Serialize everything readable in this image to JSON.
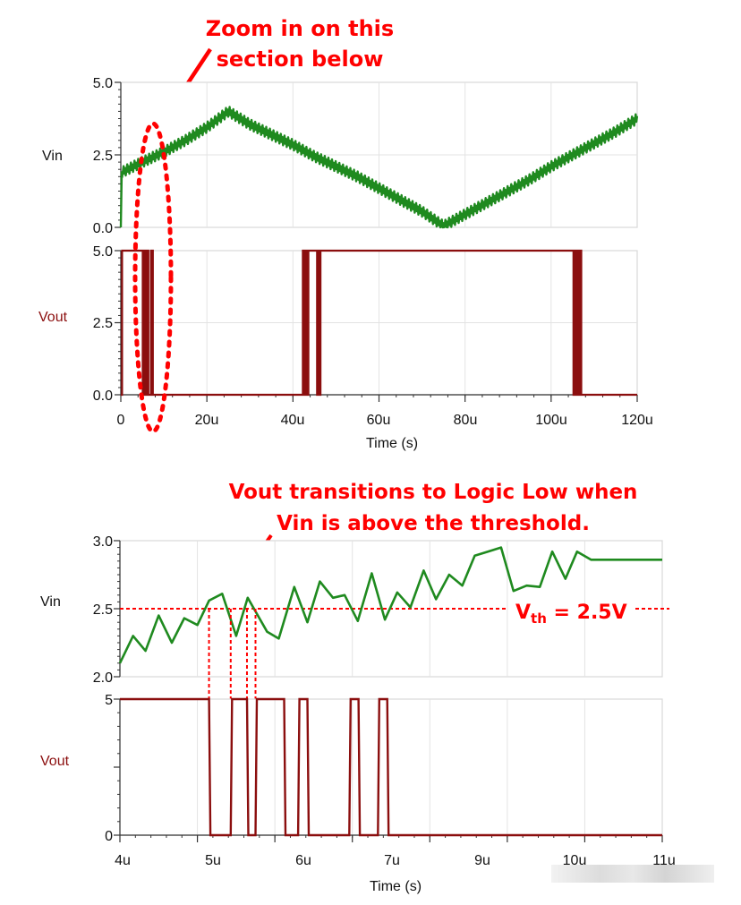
{
  "annotations": {
    "top_line1": "Zoom in on this",
    "top_line2": "section below",
    "bottom_line1": "Vout transitions to Logic Low when",
    "bottom_line2": "Vin is above the threshold.",
    "threshold_label_main": "V",
    "threshold_label_sub": "th",
    "threshold_label_rest": " = 2.5V"
  },
  "colors": {
    "vin": "#1f8a1f",
    "vout": "#8b0e0e",
    "annotation": "#ff0000",
    "grid": "#e3e3e3",
    "axis": "#333333"
  },
  "chart_data": [
    {
      "type": "line",
      "title": "Vin (overview)",
      "ylabel": "Vin",
      "xlabel": "Time (s)",
      "ylim": [
        0.0,
        5.0
      ],
      "xlim_us": [
        0,
        120
      ],
      "yticks": [
        "5.0",
        "2.5",
        "0.0"
      ],
      "grid": true,
      "x_us": [
        0,
        0.2,
        5,
        10,
        15,
        20,
        25,
        30,
        35,
        40,
        45,
        50,
        55,
        60,
        65,
        70,
        75,
        80,
        85,
        90,
        95,
        100,
        105,
        110,
        115,
        120
      ],
      "values": [
        0.0,
        1.9,
        2.25,
        2.6,
        3.0,
        3.45,
        4.0,
        3.55,
        3.2,
        2.85,
        2.45,
        2.1,
        1.75,
        1.35,
        0.95,
        0.55,
        0.05,
        0.45,
        0.85,
        1.25,
        1.65,
        2.1,
        2.5,
        2.9,
        3.3,
        3.75
      ],
      "noise_amplitude": 0.18
    },
    {
      "type": "line",
      "title": "Vout (overview)",
      "ylabel": "Vout",
      "xlabel": "Time (s)",
      "ylim": [
        0.0,
        5.0
      ],
      "xlim_us": [
        0,
        120
      ],
      "yticks": [
        "5.0",
        "2.5",
        "0.0"
      ],
      "xticks": [
        "0",
        "20u",
        "40u",
        "60u",
        "80u",
        "100u",
        "120u"
      ],
      "grid": true,
      "transitions_us": [
        {
          "t": 0.3,
          "to": 5
        },
        {
          "t": 5.1,
          "to": 0
        },
        {
          "t": 5.4,
          "to": 5
        },
        {
          "t": 5.6,
          "to": 0
        },
        {
          "t": 5.75,
          "to": 5
        },
        {
          "t": 6.1,
          "to": 0
        },
        {
          "t": 6.3,
          "to": 5
        },
        {
          "t": 6.4,
          "to": 0
        },
        {
          "t": 7.0,
          "to": 5
        },
        {
          "t": 7.1,
          "to": 0
        },
        {
          "t": 7.35,
          "to": 5
        },
        {
          "t": 7.45,
          "to": 0
        },
        {
          "t": 42.3,
          "to": 5
        },
        {
          "t": 42.6,
          "to": 0
        },
        {
          "t": 42.9,
          "to": 5
        },
        {
          "t": 43.2,
          "to": 0
        },
        {
          "t": 43.6,
          "to": 5
        },
        {
          "t": 45.6,
          "to": 0
        },
        {
          "t": 45.8,
          "to": 5
        },
        {
          "t": 46.2,
          "to": 0
        },
        {
          "t": 46.4,
          "to": 5
        },
        {
          "t": 105.2,
          "to": 0
        },
        {
          "t": 105.5,
          "to": 5
        },
        {
          "t": 105.8,
          "to": 0
        },
        {
          "t": 106.0,
          "to": 5
        },
        {
          "t": 106.4,
          "to": 0
        },
        {
          "t": 106.7,
          "to": 5
        },
        {
          "t": 107.0,
          "to": 0
        }
      ]
    },
    {
      "type": "line",
      "title": "Vin (zoomed)",
      "ylabel": "Vin",
      "xlabel": "Time (s)",
      "ylim": [
        2.0,
        3.0
      ],
      "xlim_us": [
        4,
        11
      ],
      "yticks": [
        "3.0",
        "2.5",
        "2.0"
      ],
      "grid": true,
      "threshold": 2.5,
      "x_us": [
        4.0,
        4.17,
        4.33,
        4.5,
        4.67,
        4.83,
        5.0,
        5.15,
        5.32,
        5.5,
        5.65,
        5.75,
        5.9,
        6.05,
        6.25,
        6.42,
        6.58,
        6.75,
        6.9,
        7.07,
        7.25,
        7.42,
        7.58,
        7.75,
        7.92,
        8.08,
        8.25,
        8.42,
        8.58,
        8.75,
        8.92,
        9.08,
        9.25,
        9.42,
        9.58,
        9.75,
        9.9,
        10.08,
        10.25,
        10.42,
        10.58,
        10.75,
        10.92,
        11.0
      ],
      "values": [
        2.1,
        2.3,
        2.19,
        2.45,
        2.25,
        2.43,
        2.38,
        2.56,
        2.61,
        2.3,
        2.58,
        2.48,
        2.33,
        2.28,
        2.66,
        2.4,
        2.7,
        2.58,
        2.6,
        2.41,
        2.76,
        2.42,
        2.62,
        2.51,
        2.78,
        2.57,
        2.75,
        2.67,
        2.89,
        2.92,
        2.95,
        2.63,
        2.67,
        2.66,
        2.92,
        2.72,
        2.92,
        2.86,
        2.86,
        2.86,
        2.86,
        2.86,
        2.86,
        2.86
      ]
    },
    {
      "type": "line",
      "title": "Vout (zoomed)",
      "ylabel": "Vout",
      "xlabel": "Time (s)",
      "ylim": [
        0,
        5
      ],
      "xlim_us": [
        4,
        11
      ],
      "yticks": [
        "5",
        "0"
      ],
      "xticks": [
        "4u",
        "5u",
        "6u",
        "7u",
        "9u",
        "10u",
        "11u"
      ],
      "grid": true,
      "transitions_us": [
        {
          "t": 5.15,
          "to": 0
        },
        {
          "t": 5.43,
          "to": 5
        },
        {
          "t": 5.64,
          "to": 0
        },
        {
          "t": 5.75,
          "to": 5
        },
        {
          "t": 6.12,
          "to": 0
        },
        {
          "t": 6.3,
          "to": 5
        },
        {
          "t": 6.42,
          "to": 0
        },
        {
          "t": 6.96,
          "to": 5
        },
        {
          "t": 7.08,
          "to": 0
        },
        {
          "t": 7.33,
          "to": 5
        },
        {
          "t": 7.45,
          "to": 0
        }
      ],
      "threshold_crossings_us": [
        5.15,
        5.43,
        5.64,
        5.75
      ]
    }
  ],
  "axes": {
    "top_vin": {
      "label": "Vin",
      "ticks": [
        "5.0",
        "2.5",
        "0.0"
      ]
    },
    "top_vout": {
      "label": "Vout",
      "ticks": [
        "5.0",
        "2.5",
        "0.0"
      ]
    },
    "top_x": {
      "ticks": [
        "0",
        "20u",
        "40u",
        "60u",
        "80u",
        "100u",
        "120u"
      ],
      "title": "Time (s)"
    },
    "bottom_vin": {
      "label": "Vin",
      "ticks": [
        "3.0",
        "2.5",
        "2.0"
      ]
    },
    "bottom_vout": {
      "label": "Vout",
      "ticks": [
        "5",
        "0"
      ]
    },
    "bottom_x": {
      "ticks": [
        "4u",
        "5u",
        "6u",
        "7u",
        "9u",
        "10u",
        "11u"
      ],
      "title": "Time (s)"
    }
  }
}
